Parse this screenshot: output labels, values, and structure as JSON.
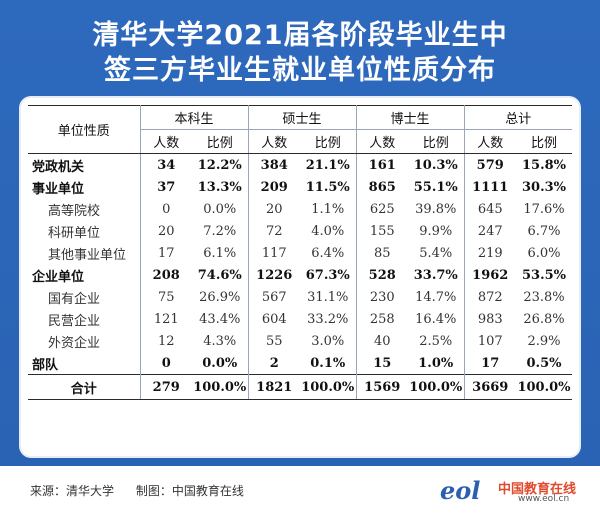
{
  "title_line1": "清华大学2021届各阶段毕业生中",
  "title_line2": "签三方毕业生就业单位性质分布",
  "table": {
    "corner": "单位性质",
    "groups": [
      "本科生",
      "硕士生",
      "博士生",
      "总计"
    ],
    "subheads": [
      "人数",
      "比例"
    ],
    "rows": [
      {
        "label": "党政机关",
        "style": "bold",
        "cells": [
          "34",
          "12.2%",
          "384",
          "21.1%",
          "161",
          "10.3%",
          "579",
          "15.8%"
        ]
      },
      {
        "label": "事业单位",
        "style": "bold",
        "cells": [
          "37",
          "13.3%",
          "209",
          "11.5%",
          "865",
          "55.1%",
          "1111",
          "30.3%"
        ]
      },
      {
        "label": "高等院校",
        "style": "sub",
        "cells": [
          "0",
          "0.0%",
          "20",
          "1.1%",
          "625",
          "39.8%",
          "645",
          "17.6%"
        ]
      },
      {
        "label": "科研单位",
        "style": "sub",
        "cells": [
          "20",
          "7.2%",
          "72",
          "4.0%",
          "155",
          "9.9%",
          "247",
          "6.7%"
        ]
      },
      {
        "label": "其他事业单位",
        "style": "sub",
        "cells": [
          "17",
          "6.1%",
          "117",
          "6.4%",
          "85",
          "5.4%",
          "219",
          "6.0%"
        ]
      },
      {
        "label": "企业单位",
        "style": "bold",
        "cells": [
          "208",
          "74.6%",
          "1226",
          "67.3%",
          "528",
          "33.7%",
          "1962",
          "53.5%"
        ]
      },
      {
        "label": "国有企业",
        "style": "sub",
        "cells": [
          "75",
          "26.9%",
          "567",
          "31.1%",
          "230",
          "14.7%",
          "872",
          "23.8%"
        ]
      },
      {
        "label": "民营企业",
        "style": "sub",
        "cells": [
          "121",
          "43.4%",
          "604",
          "33.2%",
          "258",
          "16.4%",
          "983",
          "26.8%"
        ]
      },
      {
        "label": "外资企业",
        "style": "sub",
        "cells": [
          "12",
          "4.3%",
          "55",
          "3.0%",
          "40",
          "2.5%",
          "107",
          "2.9%"
        ]
      },
      {
        "label": "部队",
        "style": "bold",
        "cells": [
          "0",
          "0.0%",
          "2",
          "0.1%",
          "15",
          "1.0%",
          "17",
          "0.5%"
        ]
      },
      {
        "label": "合计",
        "style": "total",
        "cells": [
          "279",
          "100.0%",
          "1821",
          "100.0%",
          "1569",
          "100.0%",
          "3669",
          "100.0%"
        ]
      }
    ]
  },
  "footer": {
    "source": "来源：清华大学",
    "maker": "制图：中国教育在线",
    "logo_mark": "eol",
    "logo_org": "中国教育在线",
    "logo_url": "www.eol.cn"
  },
  "colors": {
    "background": "#2f6bbf",
    "title_text": "#ffffff",
    "logo_blue": "#2b5fb0",
    "logo_red": "#e04a2f"
  }
}
